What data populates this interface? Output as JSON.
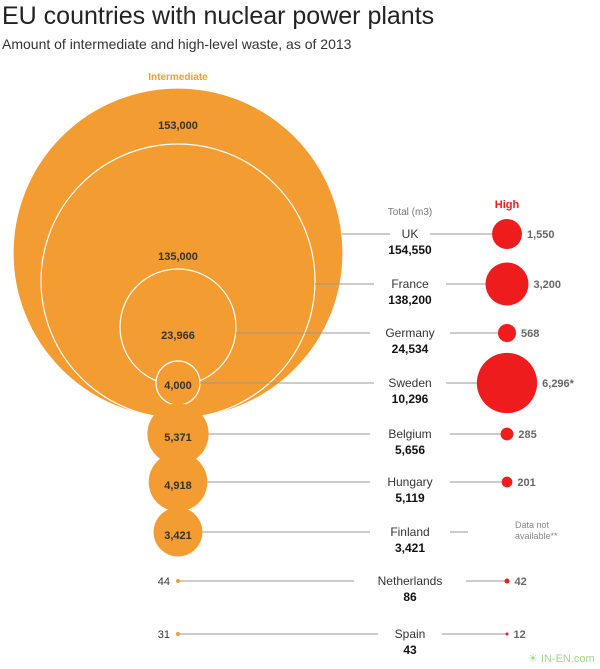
{
  "title": "EU countries with nuclear power plants",
  "subtitle": "Amount of intermediate and high-level waste, as of 2013",
  "watermark": "IN-EN.com 国际能源网",
  "colors": {
    "intermediate": "#f39c32",
    "high": "#ee1c1c",
    "text": "#333333",
    "line": "#999999"
  },
  "chart_data": {
    "type": "bubble",
    "title": "EU countries with nuclear power plants",
    "subtitle": "Amount of intermediate and high-level waste, as of 2013",
    "intermediate_label": "Intermediate",
    "high_label": "High",
    "total_label": "Total (m3)",
    "countries": [
      {
        "name": "UK",
        "intermediate": 153000,
        "intermediate_label": "153,000",
        "high": 1550,
        "high_label": "1,550",
        "total": "154,550"
      },
      {
        "name": "France",
        "intermediate": 135000,
        "intermediate_label": "135,000",
        "high": 3200,
        "high_label": "3,200",
        "total": "138,200"
      },
      {
        "name": "Germany",
        "intermediate": 23966,
        "intermediate_label": "23,966",
        "high": 568,
        "high_label": "568",
        "total": "24,534"
      },
      {
        "name": "Sweden",
        "intermediate": 4000,
        "intermediate_label": "4,000",
        "high": 6296,
        "high_label": "6,296*",
        "total": "10,296"
      },
      {
        "name": "Belgium",
        "intermediate": 5371,
        "intermediate_label": "5,371",
        "high": 285,
        "high_label": "285",
        "total": "5,656"
      },
      {
        "name": "Hungary",
        "intermediate": 4918,
        "intermediate_label": "4,918",
        "high": 201,
        "high_label": "201",
        "total": "5,119"
      },
      {
        "name": "Finland",
        "intermediate": 3421,
        "intermediate_label": "3,421",
        "high": null,
        "high_label": "Data not|available**",
        "total": "3,421"
      },
      {
        "name": "Netherlands",
        "intermediate": 44,
        "intermediate_label": "44",
        "high": 42,
        "high_label": "42",
        "total": "86"
      },
      {
        "name": "Spain",
        "intermediate": 31,
        "intermediate_label": "31",
        "high": 12,
        "high_label": "12",
        "total": "43"
      }
    ]
  }
}
